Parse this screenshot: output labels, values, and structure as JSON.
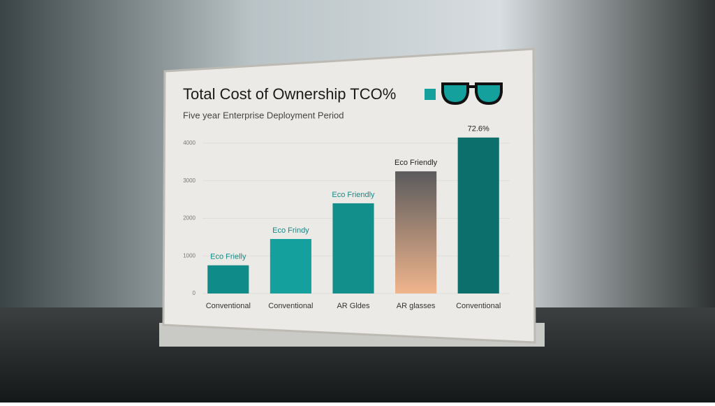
{
  "chart_data": {
    "type": "bar",
    "title": "Total Cost of Ownership TCO%",
    "subtitle": "Five year Enterprise Deployment Period",
    "categories": [
      "Conventional",
      "Conventional",
      "AR Gldes",
      "AR glasses",
      "Conventional"
    ],
    "values": [
      750,
      1450,
      2400,
      3250,
      4150
    ],
    "value_labels": [
      "Eco Frielly",
      "Eco Frindy",
      "Eco Friendly",
      "Eco Friendly",
      "72.6%"
    ],
    "colors": [
      "#0f8c89",
      "#14a19d",
      "#128f8b",
      "#9a8a80",
      "#0c6f6c"
    ],
    "ylim": [
      0,
      4500
    ],
    "yticks": [
      0,
      1000,
      2000,
      3000,
      4000
    ],
    "grid": true
  }
}
